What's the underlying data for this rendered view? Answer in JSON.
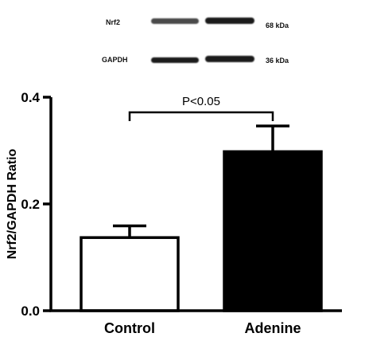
{
  "blot": {
    "rows": [
      {
        "protein": "Nrf2",
        "size": "68 kDa"
      },
      {
        "protein": "GAPDH",
        "size": "36 kDa"
      }
    ]
  },
  "chart_data": {
    "type": "bar",
    "categories": [
      "Control",
      "Adenine"
    ],
    "values": [
      0.137,
      0.298
    ],
    "errors": [
      0.022,
      0.048
    ],
    "bar_fill": [
      "#ffffff",
      "#000000"
    ],
    "ylabel": "Nrf2/GAPDH Ratio",
    "ylim": [
      0.0,
      0.4
    ],
    "yticks": [
      "0.0",
      "0.2",
      "0.4"
    ],
    "annotation": "P<0.05",
    "grid": false
  }
}
